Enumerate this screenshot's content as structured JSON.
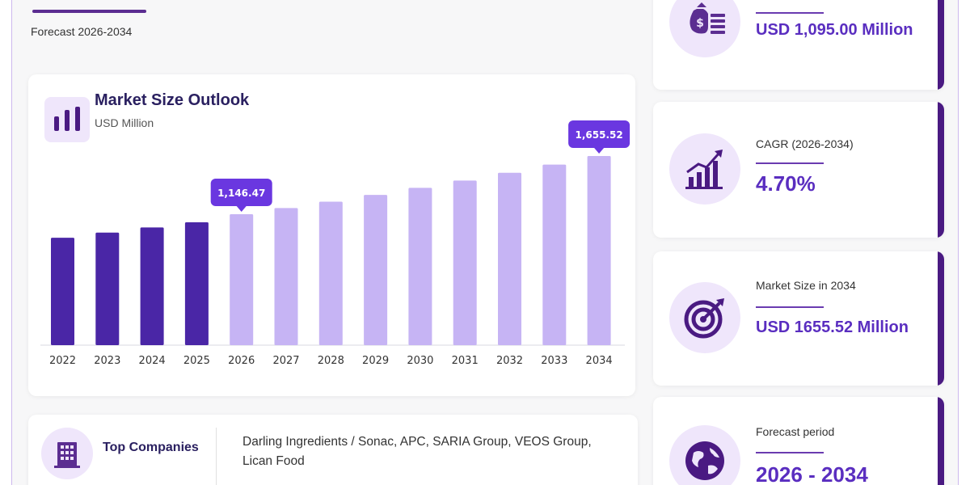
{
  "header": {
    "subtitle": "Forecast 2026-2034"
  },
  "chart": {
    "title": "Market Size Outlook",
    "unit": "USD Million"
  },
  "chart_data": {
    "type": "bar",
    "categories": [
      "2022",
      "2023",
      "2024",
      "2025",
      "2026",
      "2027",
      "2028",
      "2029",
      "2030",
      "2031",
      "2032",
      "2033",
      "2034"
    ],
    "values": [
      940,
      985,
      1030,
      1075,
      1146.47,
      1200,
      1256,
      1315,
      1377,
      1441,
      1509,
      1580,
      1655.52
    ],
    "labels": [
      {
        "index": 4,
        "text": "1,146.47"
      },
      {
        "index": 12,
        "text": "1,655.52"
      }
    ],
    "historical_color": "#4a26a6",
    "forecast_color": "#c6b4f4",
    "label_color": "#6a37e0"
  },
  "companies": {
    "label": "Top Companies",
    "list": "Darling Ingredients / Sonac, APC, SARIA Group, VEOS Group, Lican Food"
  },
  "stats": [
    {
      "label": "",
      "value": "USD 1,095.00 Million",
      "icon": "money-bag-icon"
    },
    {
      "label": "CAGR (2026-2034)",
      "value": "4.70%",
      "icon": "growth-chart-icon"
    },
    {
      "label": "Market Size in 2034",
      "value": "USD 1655.52 Million",
      "icon": "target-icon"
    },
    {
      "label": "Forecast period",
      "value": "2026 - 2034",
      "icon": "globe-icon"
    }
  ],
  "colors": {
    "accent": "#5a2ec0",
    "edge": "#4a1a82",
    "icon_bg": "#efe6fb"
  }
}
